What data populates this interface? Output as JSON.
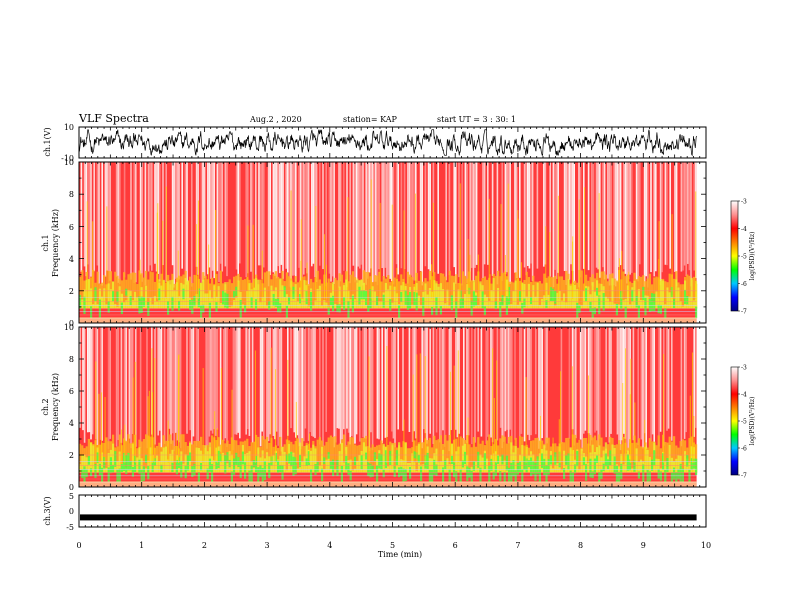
{
  "header": {
    "title": "VLF Spectra",
    "date": "Aug.2 , 2020",
    "station": "station= KAP",
    "start": "start UT = 3 : 30: 1"
  },
  "chart_data": [
    {
      "type": "line",
      "ylabel": "ch.1(V)",
      "yticks": [
        "10",
        "-10"
      ],
      "ylim": [
        -10,
        10
      ],
      "xlim": [
        0,
        10
      ],
      "description_color": "#000000"
    },
    {
      "type": "heatmap",
      "ylabel": "ch.1 Frequency (kHz)",
      "ylabel_line1": "ch.1",
      "ylabel_line2": "Frequency (kHz)",
      "yticks": [
        "0",
        "2",
        "4",
        "6",
        "8",
        "10"
      ],
      "ylim": [
        0,
        10
      ],
      "xlim": [
        0,
        10
      ],
      "data_end_min": 9.85,
      "colorbar": {
        "label": "log(PSD)(V²/Hz)",
        "ticks": [
          "-3",
          "-4",
          "-5",
          "-6",
          "-7"
        ],
        "range": [
          -7,
          -3
        ],
        "colors": [
          "#000080",
          "#0000ff",
          "#00c8ff",
          "#00ff00",
          "#ffff00",
          "#ff8000",
          "#ff0000",
          "#ff9090",
          "#ffffff"
        ]
      }
    },
    {
      "type": "heatmap",
      "ylabel": "ch.2 Frequency (kHz)",
      "ylabel_line1": "ch.2",
      "ylabel_line2": "Frequency (kHz)",
      "yticks": [
        "0",
        "2",
        "4",
        "6",
        "8",
        "10"
      ],
      "ylim": [
        0,
        10
      ],
      "xlim": [
        0,
        10
      ],
      "data_end_min": 9.85,
      "colorbar": {
        "label": "log(PSD)(V²/Hz)",
        "ticks": [
          "-3",
          "-4",
          "-5",
          "-6",
          "-7"
        ],
        "range": [
          -7,
          -3
        ],
        "colors": [
          "#000080",
          "#0000ff",
          "#00c8ff",
          "#00ff00",
          "#ffff00",
          "#ff8000",
          "#ff0000",
          "#ff9090",
          "#ffffff"
        ]
      }
    },
    {
      "type": "line",
      "ylabel": "ch.3(V)",
      "yticks": [
        "5",
        "0",
        "-5"
      ],
      "ylim": [
        -5,
        5
      ],
      "xlim": [
        0,
        10
      ],
      "band_level": -2,
      "data_end_min": 9.85
    }
  ],
  "xaxis": {
    "label": "Time (min)",
    "ticks": [
      "0",
      "1",
      "2",
      "3",
      "4",
      "5",
      "6",
      "7",
      "8",
      "9",
      "10"
    ]
  }
}
